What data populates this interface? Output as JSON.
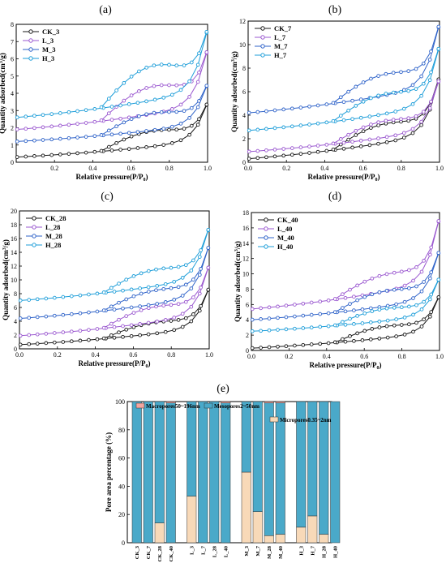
{
  "chart_data": [
    {
      "type": "line",
      "panel_label": "(a)",
      "xlabel": "Relative pressure(P/P",
      "xlabel_sub": "0",
      "xlabel_end": ")",
      "ylabel": "Quantity adsorbed(cm",
      "ylabel_sup": "3",
      "ylabel_end": "/g)",
      "xlim": [
        0,
        1.0
      ],
      "ylim": [
        0,
        8
      ],
      "xticks": [
        "0.2",
        "0.4",
        "0.6",
        "0.8",
        "1.0"
      ],
      "yticks": [
        "0",
        "1",
        "2",
        "3",
        "4",
        "5",
        "6",
        "7",
        "8"
      ],
      "legend_position": "top-left",
      "series": [
        {
          "name": "CK_3",
          "color": "#1a1a1a",
          "base": 0.3,
          "top": 3.5,
          "hyst": 0.9
        },
        {
          "name": "L_3",
          "color": "#9b59d0",
          "base": 1.9,
          "top": 6.6,
          "hyst": 1.6
        },
        {
          "name": "M_3",
          "color": "#2f63c9",
          "base": 1.2,
          "top": 4.6,
          "hyst": 1.0
        },
        {
          "name": "H_3",
          "color": "#1e9ed9",
          "base": 2.6,
          "top": 7.8,
          "hyst": 2.0
        }
      ]
    },
    {
      "type": "line",
      "panel_label": "(b)",
      "xlabel": "Relative pressure(P/P",
      "xlabel_sub": "0",
      "xlabel_end": ")",
      "ylabel": "Quantity adsorbed(cm",
      "ylabel_sup": "3",
      "ylabel_end": "/g)",
      "xlim": [
        0,
        1.0
      ],
      "ylim": [
        0,
        12
      ],
      "xticks": [
        "0.0",
        "0.2",
        "0.4",
        "0.6",
        "0.8",
        "1.0"
      ],
      "yticks": [
        "0",
        "2",
        "4",
        "6",
        "8",
        "10",
        "12"
      ],
      "legend_position": "top-left",
      "series": [
        {
          "name": "CK_7",
          "color": "#1a1a1a",
          "base": 0.3,
          "top": 7.4,
          "hyst": 1.6
        },
        {
          "name": "L_7",
          "color": "#9b59d0",
          "base": 0.9,
          "top": 7.2,
          "hyst": 1.4
        },
        {
          "name": "M_7",
          "color": "#2f63c9",
          "base": 4.2,
          "top": 11.9,
          "hyst": 1.8
        },
        {
          "name": "H_7",
          "color": "#1e9ed9",
          "base": 2.7,
          "top": 10.0,
          "hyst": 1.7
        }
      ]
    },
    {
      "type": "line",
      "panel_label": "(c)",
      "xlabel": "Relative pressure(P/P",
      "xlabel_sub": "0",
      "xlabel_end": ")",
      "ylabel": "Quantity adsorbed(cm",
      "ylabel_sup": "3",
      "ylabel_end": "/g)",
      "xlim": [
        0,
        1.0
      ],
      "ylim": [
        0,
        20
      ],
      "xticks": [
        "0.0",
        "0.2",
        "0.4",
        "0.6",
        "0.8",
        "1.0"
      ],
      "yticks": [
        "0",
        "2",
        "4",
        "6",
        "8",
        "10",
        "12",
        "14",
        "16",
        "18",
        "20"
      ],
      "legend_position": "top-left",
      "series": [
        {
          "name": "CK_28",
          "color": "#1a1a1a",
          "base": 0.6,
          "top": 9.0,
          "hyst": 1.6
        },
        {
          "name": "L_28",
          "color": "#9b59d0",
          "base": 1.9,
          "top": 12.3,
          "hyst": 2.2
        },
        {
          "name": "M_28",
          "color": "#2f63c9",
          "base": 4.4,
          "top": 15.2,
          "hyst": 2.0
        },
        {
          "name": "H_28",
          "color": "#1e9ed9",
          "base": 7.0,
          "top": 17.8,
          "hyst": 2.4
        }
      ]
    },
    {
      "type": "line",
      "panel_label": "(d)",
      "xlabel": "Relative pressure(P/P",
      "xlabel_sub": "0",
      "xlabel_end": ")",
      "ylabel": "Quantity adsorbed(cm",
      "ylabel_sup": "3",
      "ylabel_end": "/g)",
      "xlim": [
        0,
        1.0
      ],
      "ylim": [
        0,
        18
      ],
      "xticks": [
        "0.0",
        "0.2",
        "0.4",
        "0.6",
        "0.8",
        "1.0"
      ],
      "yticks": [
        "0",
        "2",
        "4",
        "6",
        "8",
        "10",
        "12",
        "14",
        "16",
        "18"
      ],
      "legend_position": "top-left",
      "series": [
        {
          "name": "CK_40",
          "color": "#1a1a1a",
          "base": 0.3,
          "top": 7.3,
          "hyst": 1.5
        },
        {
          "name": "L_40",
          "color": "#9b59d0",
          "base": 5.4,
          "top": 17.5,
          "hyst": 2.2
        },
        {
          "name": "M_40",
          "color": "#2f63c9",
          "base": 4.0,
          "top": 13.2,
          "hyst": 2.0
        },
        {
          "name": "H_40",
          "color": "#1e9ed9",
          "base": 2.5,
          "top": 9.6,
          "hyst": 1.6
        }
      ]
    },
    {
      "type": "bar",
      "stacked": true,
      "panel_label": "(e)",
      "ylabel": "Pore area percentage (%)",
      "ylim": [
        0,
        100
      ],
      "yticks": [
        "0",
        "20",
        "40",
        "60",
        "80",
        "100"
      ],
      "legend_position": "top",
      "groups": [
        [
          "CK_3",
          "CK_7",
          "CK_28",
          "CK_40"
        ],
        [
          "L_3",
          "L_7",
          "L_28",
          "L_40"
        ],
        [
          "M_3",
          "M_7",
          "M_28",
          "M_40"
        ],
        [
          "H_3",
          "H_7",
          "H_28",
          "H_40"
        ]
      ],
      "series": [
        {
          "name": "Micropores0.35~2nm",
          "color": "#f8d9b8",
          "values": [
            0,
            0,
            14,
            0,
            33,
            0,
            0,
            0,
            50,
            22,
            5,
            6,
            11,
            19,
            6,
            0
          ]
        },
        {
          "name": "Mesopores2~50nm",
          "color": "#4aa9c9",
          "values": [
            100,
            100,
            86,
            99,
            67,
            100,
            100,
            99,
            50,
            78,
            94,
            93,
            89,
            81,
            94,
            100
          ]
        },
        {
          "name": "Macropores50~196nm",
          "color": "#f4a6a0",
          "values": [
            0,
            0,
            0,
            1,
            0,
            0,
            0,
            1,
            0,
            0,
            1,
            1,
            0,
            0,
            0,
            0
          ]
        }
      ]
    }
  ]
}
